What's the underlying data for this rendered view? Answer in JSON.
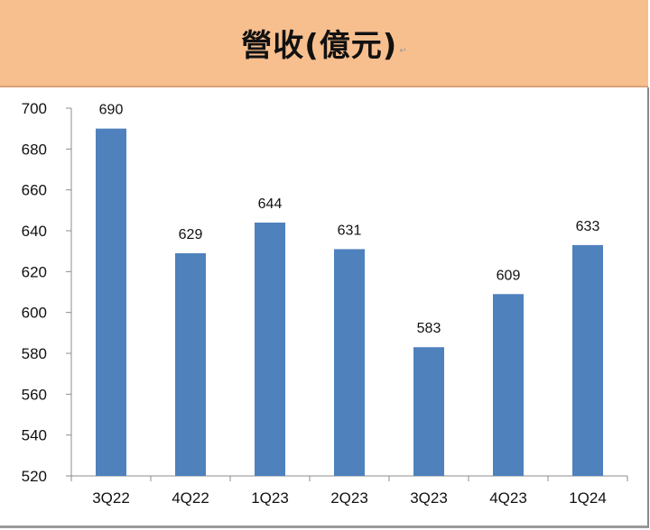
{
  "header": {
    "title": "營收(億元)",
    "mark": "↵"
  },
  "chart_data": {
    "type": "bar",
    "title": "營收(億元)",
    "xlabel": "",
    "ylabel": "",
    "categories": [
      "3Q22",
      "4Q22",
      "1Q23",
      "2Q23",
      "3Q23",
      "4Q23",
      "1Q24"
    ],
    "values": [
      690,
      629,
      644,
      631,
      583,
      609,
      633
    ],
    "ylim": [
      520,
      700
    ],
    "yticks": [
      520,
      540,
      560,
      580,
      600,
      620,
      640,
      660,
      680,
      700
    ],
    "grid": false,
    "legend": null,
    "data_labels": true,
    "bar_color": "#4f81bd"
  }
}
